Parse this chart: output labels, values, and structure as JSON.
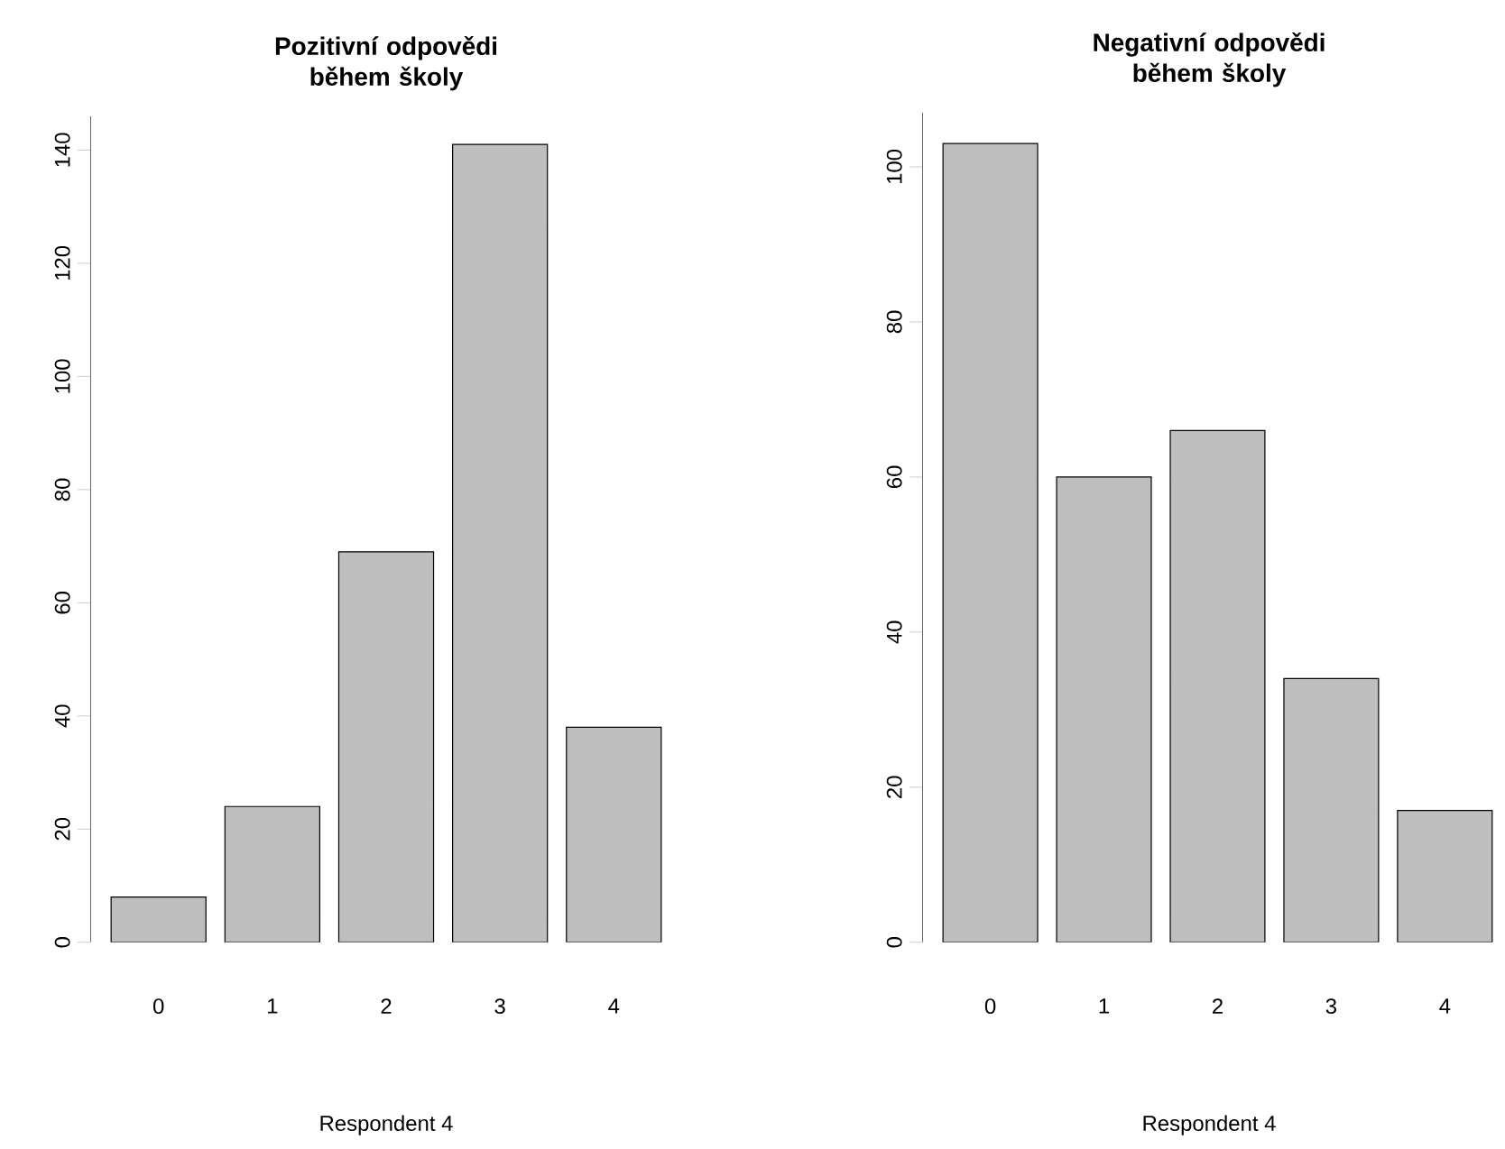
{
  "chart_data": [
    {
      "type": "bar",
      "title": "Pozitivní odpovědi během školy",
      "xlabel": "Respondent 4",
      "categories": [
        "0",
        "1",
        "2",
        "3",
        "4"
      ],
      "values": [
        8,
        24,
        69,
        141,
        38
      ],
      "color": "#bebebe",
      "ylim": [
        0,
        146
      ],
      "yticks": [
        0,
        20,
        40,
        60,
        80,
        100,
        120,
        140
      ]
    },
    {
      "type": "bar",
      "title": "Negativní odpovědi během školy",
      "xlabel": "Respondent 4",
      "categories": [
        "0",
        "1",
        "2",
        "3",
        "4"
      ],
      "values": [
        103,
        60,
        66,
        34,
        17
      ],
      "color": "#bebebe",
      "ylim": [
        0,
        107
      ],
      "yticks": [
        0,
        20,
        40,
        60,
        80,
        100
      ]
    }
  ]
}
